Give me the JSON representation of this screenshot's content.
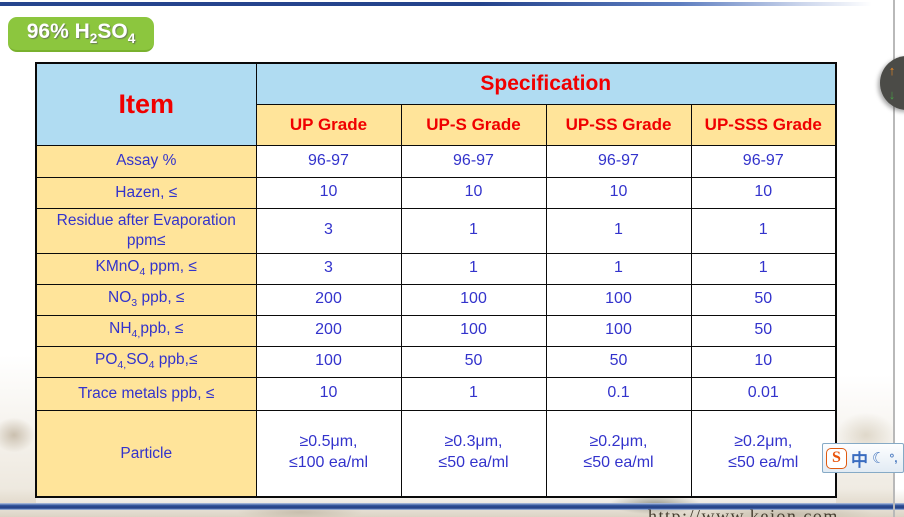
{
  "slide": {
    "badge_label": [
      {
        "t": "96% H"
      },
      {
        "s": "2"
      },
      {
        "t": "SO"
      },
      {
        "s": "4"
      }
    ],
    "footer_url": "http://www.kejon.com"
  },
  "table": {
    "item_header": "Item",
    "spec_header": "Specification",
    "grade_headers": [
      "UP Grade",
      "UP-S Grade",
      "UP-SS Grade",
      "UP-SSS Grade"
    ],
    "rows": [
      {
        "label": [
          {
            "t": "Assay %"
          }
        ],
        "values": [
          "96-97",
          "96-97",
          "96-97",
          "96-97"
        ]
      },
      {
        "label": [
          {
            "t": "Hazen, ≤"
          }
        ],
        "values": [
          "10",
          "10",
          "10",
          "10"
        ]
      },
      {
        "label": [
          {
            "t": "Residue after Evaporation\nppm≤"
          }
        ],
        "values": [
          "3",
          "1",
          "1",
          "1"
        ]
      },
      {
        "label": [
          {
            "t": "KMnO"
          },
          {
            "s": "4"
          },
          {
            "t": " ppm, ≤"
          }
        ],
        "values": [
          "3",
          "1",
          "1",
          "1"
        ]
      },
      {
        "label": [
          {
            "t": "NO"
          },
          {
            "s": "3"
          },
          {
            "t": " ppb, ≤"
          }
        ],
        "values": [
          "200",
          "100",
          "100",
          "50"
        ]
      },
      {
        "label": [
          {
            "t": "NH"
          },
          {
            "s": "4,"
          },
          {
            "t": "ppb, ≤"
          }
        ],
        "values": [
          "200",
          "100",
          "100",
          "50"
        ]
      },
      {
        "label": [
          {
            "t": "PO"
          },
          {
            "s": "4,"
          },
          {
            "t": "SO"
          },
          {
            "s": "4"
          },
          {
            "t": " ppb,≤"
          }
        ],
        "values": [
          "100",
          "50",
          "50",
          "10"
        ]
      },
      {
        "label": [
          {
            "t": "Trace metals ppb, ≤"
          }
        ],
        "values": [
          "10",
          "1",
          "0.1",
          "0.01"
        ]
      },
      {
        "label": [
          {
            "t": "Particle"
          }
        ],
        "values": [
          "≥0.5μm,\n≤100 ea/ml",
          "≥0.3μm,\n≤50 ea/ml",
          "≥0.2μm,\n≤50 ea/ml",
          "≥0.2μm,\n≤50 ea/ml"
        ]
      }
    ]
  },
  "widgets": {
    "nav_up": "↑",
    "nav_down": "↓",
    "ime": {
      "logo": "S",
      "mode": "中",
      "moon": "☾",
      "punct": "°,"
    }
  },
  "colors": {
    "header_blue": "#b0dcf2",
    "label_yellow": "#ffe49a",
    "text_red": "#f00000",
    "text_blue": "#3333cc",
    "badge_green": "#8cc63e",
    "divider_blue": "#30549c"
  }
}
